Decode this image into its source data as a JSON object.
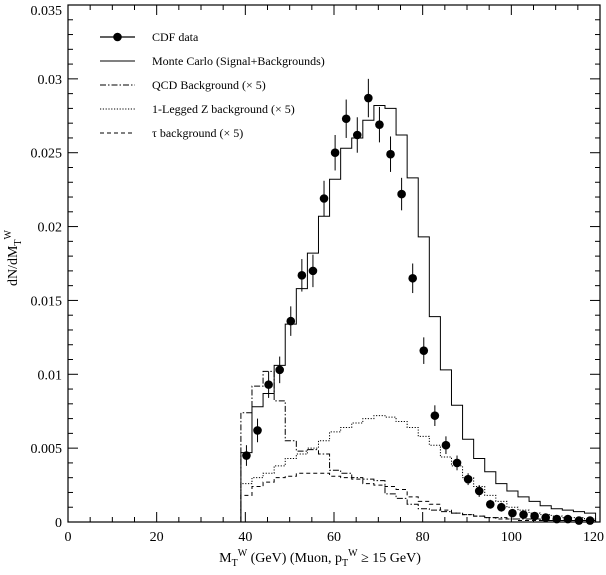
{
  "chart_data": {
    "type": "line",
    "title": "",
    "xlabel": {
      "base": "M",
      "sub1": "T",
      "sup1": "W",
      "mid": " (GeV) (Muon, p",
      "sub2": "T",
      "sup2": "W",
      "tail": " ≥ 15 GeV)"
    },
    "ylabel": {
      "base": "dN/dM",
      "sub": "T",
      "sup": "W"
    },
    "xlim": [
      0,
      120
    ],
    "ylim": [
      0,
      0.035
    ],
    "x_ticks": [
      0,
      20,
      40,
      60,
      80,
      100,
      120
    ],
    "x_tick_labels": [
      "0",
      "20",
      "40",
      "60",
      "80",
      "100",
      "120"
    ],
    "y_ticks": [
      0,
      0.005,
      0.01,
      0.015,
      0.02,
      0.025,
      0.03,
      0.035
    ],
    "y_tick_labels": [
      "0",
      "0.005",
      "0.01",
      "0.015",
      "0.02",
      "0.025",
      "0.03",
      "0.035"
    ],
    "grid": false,
    "legend_position": "top-left",
    "legend": [
      {
        "label": "CDF data",
        "style": "marker"
      },
      {
        "label": "Monte Carlo (Signal+Backgrounds)",
        "style": "solid"
      },
      {
        "label": "QCD Background (× 5)",
        "style": "dashdot"
      },
      {
        "label": "1-Legged Z background (× 5)",
        "style": "dotted"
      },
      {
        "label": "τ background (× 5)",
        "style": "dashed"
      }
    ],
    "bin_edges": [
      0,
      39,
      41.5,
      44,
      46.5,
      49,
      51.5,
      54,
      56.5,
      59,
      61.5,
      64,
      66.5,
      69,
      71.5,
      74,
      76.5,
      79,
      81.5,
      84,
      86.5,
      89,
      91.5,
      94,
      96.5,
      99,
      101.5,
      104,
      106.5,
      109,
      111.5,
      114,
      116.5,
      119
    ],
    "series": [
      {
        "label_index": 0,
        "style": "marker",
        "x": [
          40.25,
          42.75,
          45.25,
          47.75,
          50.25,
          52.75,
          55.25,
          57.75,
          60.25,
          62.75,
          65.25,
          67.75,
          70.25,
          72.75,
          75.25,
          77.75,
          80.25,
          82.75,
          85.25,
          87.75,
          90.25,
          92.75,
          95.25,
          97.75,
          100.25,
          102.75,
          105.25,
          107.75,
          110.25,
          112.75,
          115.25,
          117.75
        ],
        "y": [
          0.0045,
          0.0062,
          0.0093,
          0.0103,
          0.0136,
          0.0167,
          0.017,
          0.0219,
          0.025,
          0.0273,
          0.0262,
          0.0287,
          0.0269,
          0.0249,
          0.0222,
          0.0165,
          0.0116,
          0.0072,
          0.0052,
          0.004,
          0.0029,
          0.0021,
          0.0012,
          0.001,
          0.0006,
          0.0005,
          0.0004,
          0.0003,
          0.0002,
          0.0002,
          0.0001,
          0.0001
        ],
        "yerr": [
          0.0007,
          0.0008,
          0.0009,
          0.0009,
          0.001,
          0.0011,
          0.0011,
          0.0012,
          0.0012,
          0.0013,
          0.0012,
          0.0013,
          0.0012,
          0.0012,
          0.0011,
          0.001,
          0.0009,
          0.0007,
          0.0006,
          0.0005,
          0.0004,
          0.0004,
          0.0003,
          0.0003,
          0.0002,
          0.0002,
          0.0002,
          0.0002,
          0.0001,
          0.0001,
          0.0001,
          0.0001
        ]
      },
      {
        "label_index": 1,
        "style": "solid",
        "y": [
          0,
          0.0047,
          0.0078,
          0.0087,
          0.0106,
          0.0134,
          0.0158,
          0.0182,
          0.0207,
          0.0232,
          0.0253,
          0.026,
          0.0272,
          0.0282,
          0.028,
          0.0262,
          0.0233,
          0.0193,
          0.0139,
          0.0103,
          0.0079,
          0.0056,
          0.0043,
          0.0034,
          0.0026,
          0.0021,
          0.0017,
          0.0014,
          0.0011,
          0.0009,
          0.0008,
          0.0007,
          0.0006
        ]
      },
      {
        "label_index": 2,
        "style": "dashdot",
        "y": [
          0,
          0.0074,
          0.0092,
          0.0102,
          0.0082,
          0.0055,
          0.0048,
          0.0049,
          0.0046,
          0.0035,
          0.0033,
          0.003,
          0.0029,
          0.0028,
          0.0019,
          0.0016,
          0.0012,
          0.0009,
          0.0008,
          0.0007,
          0.0006,
          0.0005,
          0.0004,
          0.0003,
          0.0003,
          0.0002,
          0.0002,
          0.0002,
          0.0001,
          0.0001,
          0.0001,
          0.0001,
          0.0001
        ]
      },
      {
        "label_index": 3,
        "style": "dotted",
        "y": [
          0,
          0.0026,
          0.003,
          0.0033,
          0.0038,
          0.0043,
          0.0046,
          0.005,
          0.0055,
          0.0061,
          0.0064,
          0.0067,
          0.007,
          0.0072,
          0.0071,
          0.0068,
          0.0064,
          0.0058,
          0.0052,
          0.0044,
          0.0038,
          0.003,
          0.0024,
          0.0018,
          0.0014,
          0.001,
          0.0008,
          0.0006,
          0.0005,
          0.0004,
          0.0003,
          0.0003,
          0.0002
        ]
      },
      {
        "label_index": 4,
        "style": "dashed",
        "y": [
          0,
          0.0018,
          0.0024,
          0.0027,
          0.003,
          0.0031,
          0.0033,
          0.0033,
          0.0033,
          0.0031,
          0.003,
          0.0029,
          0.0026,
          0.0025,
          0.0024,
          0.0022,
          0.0017,
          0.0014,
          0.0012,
          0.0008,
          0.0006,
          0.0005,
          0.0004,
          0.0003,
          0.0002,
          0.0002,
          0.0001,
          0.0001,
          0.0001,
          0.0001,
          0.0001,
          0.0001,
          0
        ]
      }
    ]
  }
}
